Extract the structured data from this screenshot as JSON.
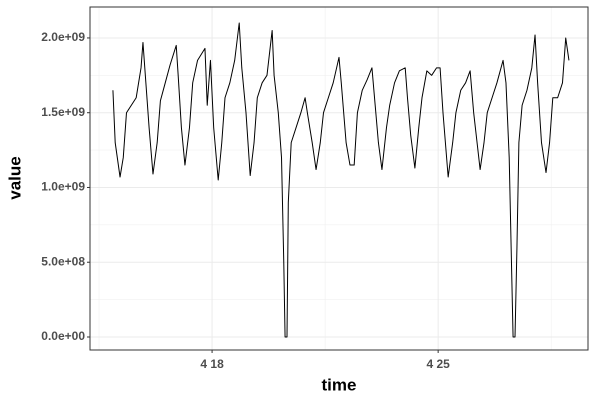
{
  "chart_data": {
    "type": "line",
    "xlabel": "time",
    "ylabel": "value",
    "xlim": [
      14.22,
      29.64
    ],
    "ylim": [
      -87000000.0,
      2207000000.0
    ],
    "xticks": [
      {
        "value": 18,
        "label": "4 18"
      },
      {
        "value": 25,
        "label": "4 25"
      }
    ],
    "minor_xticks": [
      14.5,
      21.5,
      28.5
    ],
    "yticks": [
      {
        "value": 0,
        "label": "0.0e+00"
      },
      {
        "value": 500000000.0,
        "label": "5.0e+08"
      },
      {
        "value": 1000000000.0,
        "label": "1.0e+09"
      },
      {
        "value": 1500000000.0,
        "label": "1.5e+09"
      },
      {
        "value": 2000000000.0,
        "label": "2.0e+09"
      }
    ],
    "minor_yticks": [
      250000000.0,
      750000000.0,
      1250000000.0,
      1750000000.0
    ],
    "grid": true,
    "series": [
      {
        "color": "#000000",
        "x": [
          14.93,
          15.0,
          15.15,
          15.25,
          15.35,
          15.5,
          15.65,
          15.8,
          15.86,
          15.95,
          16.05,
          16.17,
          16.3,
          16.4,
          16.55,
          16.7,
          16.89,
          16.95,
          17.05,
          17.16,
          17.3,
          17.4,
          17.55,
          17.78,
          17.85,
          17.95,
          18.05,
          18.19,
          18.3,
          18.4,
          18.55,
          18.7,
          18.84,
          18.92,
          19.05,
          19.18,
          19.3,
          19.4,
          19.55,
          19.7,
          19.86,
          19.92,
          20.05,
          20.15,
          20.22,
          20.26,
          20.32,
          20.36,
          20.45,
          20.6,
          20.75,
          20.88,
          20.95,
          21.1,
          21.22,
          21.35,
          21.45,
          21.6,
          21.75,
          21.93,
          22.0,
          22.15,
          22.27,
          22.4,
          22.5,
          22.65,
          22.8,
          22.95,
          23.05,
          23.15,
          23.26,
          23.4,
          23.5,
          23.65,
          23.8,
          23.98,
          24.05,
          24.15,
          24.28,
          24.4,
          24.5,
          24.65,
          24.8,
          24.95,
          25.06,
          25.15,
          25.31,
          25.45,
          25.55,
          25.7,
          25.85,
          25.99,
          26.1,
          26.3,
          26.42,
          26.52,
          26.67,
          26.82,
          27.01,
          27.1,
          27.2,
          27.28,
          27.32,
          27.38,
          27.44,
          27.5,
          27.6,
          27.75,
          27.9,
          28.0,
          28.08,
          28.2,
          28.34,
          28.45,
          28.55,
          28.7,
          28.85,
          28.95,
          29.05
        ],
        "values": [
          1650000000.0,
          1300000000.0,
          1070000000.0,
          1200000000.0,
          1500000000.0,
          1550000000.0,
          1600000000.0,
          1800000000.0,
          1970000000.0,
          1700000000.0,
          1400000000.0,
          1090000000.0,
          1300000000.0,
          1580000000.0,
          1700000000.0,
          1820000000.0,
          1950000000.0,
          1750000000.0,
          1400000000.0,
          1150000000.0,
          1400000000.0,
          1700000000.0,
          1850000000.0,
          1930000000.0,
          1550000000.0,
          1850000000.0,
          1400000000.0,
          1050000000.0,
          1300000000.0,
          1600000000.0,
          1700000000.0,
          1850000000.0,
          2100000000.0,
          1800000000.0,
          1500000000.0,
          1080000000.0,
          1300000000.0,
          1600000000.0,
          1700000000.0,
          1750000000.0,
          2050000000.0,
          1750000000.0,
          1500000000.0,
          1200000000.0,
          500000000.0,
          0,
          0,
          900000000.0,
          1300000000.0,
          1400000000.0,
          1500000000.0,
          1600000000.0,
          1500000000.0,
          1300000000.0,
          1120000000.0,
          1300000000.0,
          1500000000.0,
          1600000000.0,
          1700000000.0,
          1870000000.0,
          1700000000.0,
          1300000000.0,
          1150000000.0,
          1150000000.0,
          1500000000.0,
          1650000000.0,
          1720000000.0,
          1800000000.0,
          1550000000.0,
          1300000000.0,
          1120000000.0,
          1400000000.0,
          1550000000.0,
          1700000000.0,
          1780000000.0,
          1800000000.0,
          1600000000.0,
          1350000000.0,
          1130000000.0,
          1400000000.0,
          1600000000.0,
          1780000000.0,
          1750000000.0,
          1800000000.0,
          1800000000.0,
          1500000000.0,
          1070000000.0,
          1300000000.0,
          1500000000.0,
          1650000000.0,
          1700000000.0,
          1780000000.0,
          1500000000.0,
          1120000000.0,
          1300000000.0,
          1500000000.0,
          1600000000.0,
          1700000000.0,
          1850000000.0,
          1700000000.0,
          1200000000.0,
          400000000.0,
          0,
          0,
          600000000.0,
          1300000000.0,
          1550000000.0,
          1650000000.0,
          1800000000.0,
          2020000000.0,
          1700000000.0,
          1300000000.0,
          1100000000.0,
          1300000000.0,
          1600000000.0,
          1600000000.0,
          1700000000.0,
          2000000000.0,
          1850000000.0
        ]
      }
    ]
  }
}
